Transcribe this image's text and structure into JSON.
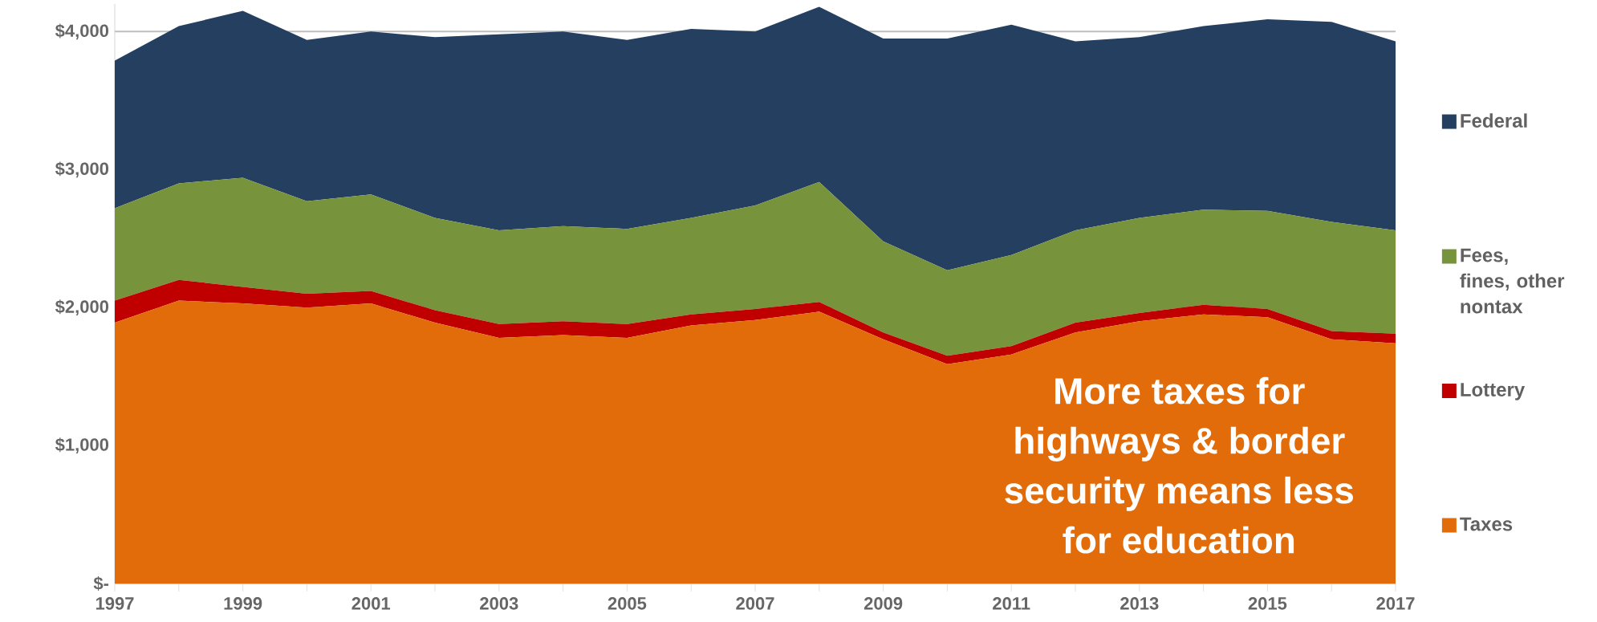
{
  "chart_data": {
    "type": "area",
    "stacked": true,
    "x": [
      1997,
      1998,
      1999,
      2000,
      2001,
      2002,
      2003,
      2004,
      2005,
      2006,
      2007,
      2008,
      2009,
      2010,
      2011,
      2012,
      2013,
      2014,
      2015,
      2016,
      2017
    ],
    "series": [
      {
        "name": "Taxes",
        "color": "#e36c0a",
        "values": [
          1890,
          2050,
          2030,
          2000,
          2030,
          1890,
          1780,
          1800,
          1780,
          1870,
          1910,
          1970,
          1770,
          1590,
          1660,
          1820,
          1900,
          1950,
          1930,
          1770,
          1740
        ]
      },
      {
        "name": "Lottery",
        "color": "#c00000",
        "values": [
          160,
          150,
          120,
          100,
          90,
          90,
          100,
          100,
          100,
          80,
          80,
          70,
          50,
          60,
          60,
          70,
          60,
          70,
          60,
          60,
          70
        ]
      },
      {
        "name": "Fees, fines, other nontax",
        "color": "#77933c",
        "values": [
          670,
          700,
          790,
          670,
          700,
          670,
          680,
          690,
          690,
          700,
          750,
          870,
          660,
          620,
          660,
          670,
          690,
          690,
          710,
          790,
          750
        ]
      },
      {
        "name": "Federal",
        "color": "#243f60",
        "values": [
          1070,
          1140,
          1210,
          1170,
          1180,
          1310,
          1420,
          1410,
          1370,
          1370,
          1260,
          1270,
          1470,
          1680,
          1670,
          1370,
          1310,
          1330,
          1390,
          1450,
          1370
        ]
      }
    ],
    "xlim": [
      1997,
      2017
    ],
    "ylim": [
      0,
      4200
    ],
    "xticks": [
      1997,
      {
        "value": 1998,
        "label": null
      },
      1999,
      {
        "value": 2000,
        "label": null
      },
      2001,
      {
        "value": 2002,
        "label": null
      },
      2003,
      {
        "value": 2004,
        "label": null
      },
      2005,
      {
        "value": 2006,
        "label": null
      },
      2007,
      {
        "value": 2008,
        "label": null
      },
      2009,
      {
        "value": 2010,
        "label": null
      },
      2011,
      {
        "value": 2012,
        "label": null
      },
      2013,
      {
        "value": 2014,
        "label": null
      },
      2015,
      {
        "value": 2016,
        "label": null
      },
      2017
    ],
    "yticks": [
      {
        "value": 0,
        "label": "$-"
      },
      {
        "value": 1000,
        "label": "$1,000"
      },
      {
        "value": 2000,
        "label": "$2,000"
      },
      {
        "value": 3000,
        "label": "$3,000"
      },
      {
        "value": 4000,
        "label": "$4,000"
      }
    ],
    "grid": "y",
    "legend": "right",
    "annotations": [
      "More taxes for highways & border security means less for education"
    ]
  }
}
